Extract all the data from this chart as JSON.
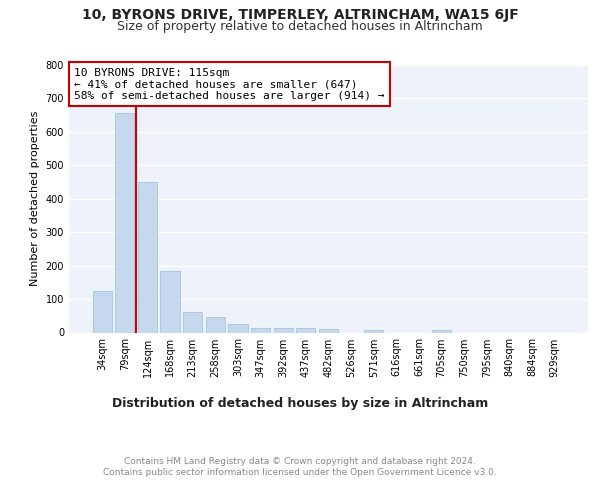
{
  "title": "10, BYRONS DRIVE, TIMPERLEY, ALTRINCHAM, WA15 6JF",
  "subtitle": "Size of property relative to detached houses in Altrincham",
  "xlabel": "Distribution of detached houses by size in Altrincham",
  "ylabel": "Number of detached properties",
  "categories": [
    "34sqm",
    "79sqm",
    "124sqm",
    "168sqm",
    "213sqm",
    "258sqm",
    "303sqm",
    "347sqm",
    "392sqm",
    "437sqm",
    "482sqm",
    "526sqm",
    "571sqm",
    "616sqm",
    "661sqm",
    "705sqm",
    "750sqm",
    "795sqm",
    "840sqm",
    "884sqm",
    "929sqm"
  ],
  "values": [
    125,
    655,
    450,
    185,
    60,
    47,
    25,
    12,
    13,
    13,
    10,
    0,
    7,
    0,
    0,
    8,
    0,
    0,
    0,
    0,
    0
  ],
  "bar_color": "#c5d8ee",
  "bar_edge_color": "#9bbcd8",
  "vline_x": 1.5,
  "annotation_text": "10 BYRONS DRIVE: 115sqm\n← 41% of detached houses are smaller (647)\n58% of semi-detached houses are larger (914) →",
  "annotation_box_color": "#ffffff",
  "annotation_box_edge_color": "#cc0000",
  "vline_color": "#cc0000",
  "ylim": [
    0,
    800
  ],
  "yticks": [
    0,
    100,
    200,
    300,
    400,
    500,
    600,
    700,
    800
  ],
  "background_color": "#eef2fa",
  "grid_color": "#ffffff",
  "footer_text": "Contains HM Land Registry data © Crown copyright and database right 2024.\nContains public sector information licensed under the Open Government Licence v3.0.",
  "title_fontsize": 10,
  "subtitle_fontsize": 9,
  "xlabel_fontsize": 9,
  "ylabel_fontsize": 8,
  "tick_fontsize": 7,
  "annotation_fontsize": 8,
  "footer_fontsize": 6.5
}
